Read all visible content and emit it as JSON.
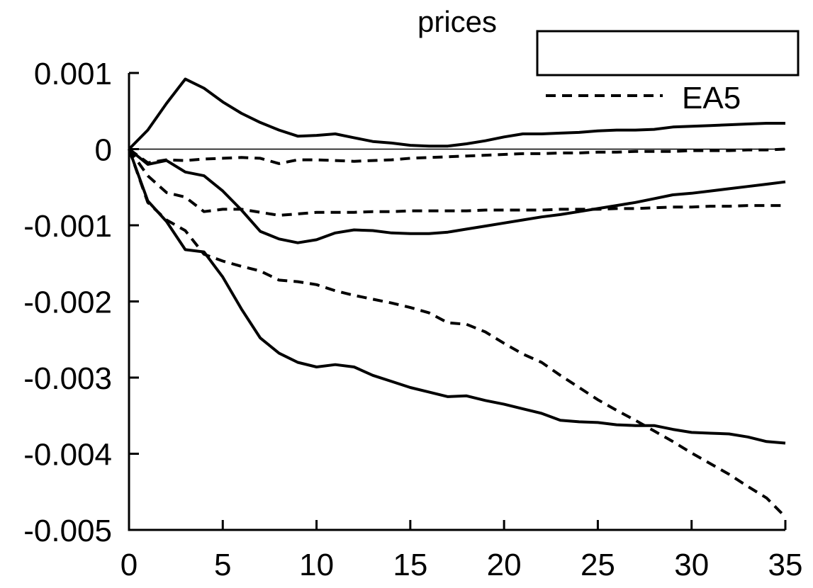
{
  "chart_data": {
    "type": "line",
    "title": "prices",
    "xlabel": "",
    "ylabel": "",
    "xlim": [
      0,
      35
    ],
    "ylim": [
      -0.005,
      0.001
    ],
    "x_ticks": [
      "0",
      "5",
      "10",
      "15",
      "20",
      "25",
      "30",
      "35"
    ],
    "y_ticks": [
      "0.001",
      "0",
      "-0.001",
      "-0.002",
      "-0.003",
      "-0.004",
      "-0.005"
    ],
    "x": [
      0,
      1,
      2,
      3,
      4,
      5,
      6,
      7,
      8,
      9,
      10,
      11,
      12,
      13,
      14,
      15,
      16,
      17,
      18,
      19,
      20,
      21,
      22,
      23,
      24,
      25,
      26,
      27,
      28,
      29,
      30,
      31,
      32,
      33,
      34,
      35
    ],
    "legend": {
      "placement": "top-right",
      "entries": [
        {
          "label": "",
          "style": "solid"
        },
        {
          "label": "EA5",
          "style": "dashed"
        }
      ]
    },
    "series": [
      {
        "style": "solid",
        "values": [
          0,
          0.00025,
          0.0006,
          0.00092,
          0.0008,
          0.00062,
          0.00047,
          0.00035,
          0.00025,
          0.00017,
          0.00018,
          0.0002,
          0.00015,
          0.0001,
          8e-05,
          5e-05,
          4e-05,
          4e-05,
          7e-05,
          0.00011,
          0.00016,
          0.0002,
          0.0002,
          0.00021,
          0.00022,
          0.00024,
          0.00025,
          0.00025,
          0.00026,
          0.00029,
          0.0003,
          0.00031,
          0.00032,
          0.00033,
          0.00034,
          0.00034
        ]
      },
      {
        "style": "solid",
        "values": [
          0,
          -0.0002,
          -0.00015,
          -0.0003,
          -0.00035,
          -0.00055,
          -0.0008,
          -0.00108,
          -0.00118,
          -0.00123,
          -0.00119,
          -0.0011,
          -0.00106,
          -0.00107,
          -0.0011,
          -0.00111,
          -0.00111,
          -0.00109,
          -0.00105,
          -0.00101,
          -0.00097,
          -0.00093,
          -0.00089,
          -0.00086,
          -0.00082,
          -0.00078,
          -0.00074,
          -0.0007,
          -0.00065,
          -0.0006,
          -0.00058,
          -0.00055,
          -0.00052,
          -0.00049,
          -0.00046,
          -0.00043
        ]
      },
      {
        "style": "solid",
        "values": [
          0,
          -0.00068,
          -0.00095,
          -0.00132,
          -0.00135,
          -0.00168,
          -0.0021,
          -0.00248,
          -0.00268,
          -0.0028,
          -0.00286,
          -0.00283,
          -0.00286,
          -0.00297,
          -0.00305,
          -0.00313,
          -0.00319,
          -0.00325,
          -0.00324,
          -0.0033,
          -0.00335,
          -0.00341,
          -0.00347,
          -0.00356,
          -0.00358,
          -0.00359,
          -0.00362,
          -0.00363,
          -0.00363,
          -0.00368,
          -0.00372,
          -0.00373,
          -0.00374,
          -0.00378,
          -0.00384,
          -0.00386
        ]
      },
      {
        "style": "dashed",
        "values": [
          0,
          -0.00018,
          -0.00014,
          -0.00015,
          -0.00013,
          -0.00012,
          -0.00011,
          -0.00012,
          -0.00019,
          -0.00014,
          -0.00014,
          -0.00015,
          -0.00016,
          -0.00015,
          -0.00014,
          -0.00012,
          -0.00011,
          -0.0001,
          -9e-05,
          -8e-05,
          -7e-05,
          -6e-05,
          -6e-05,
          -5e-05,
          -5e-05,
          -4e-05,
          -4e-05,
          -3e-05,
          -3e-05,
          -3e-05,
          -2e-05,
          -2e-05,
          -2e-05,
          -1e-05,
          -1e-05,
          0
        ]
      },
      {
        "style": "dashed",
        "values": [
          0,
          -0.00035,
          -0.00057,
          -0.00063,
          -0.00082,
          -0.00079,
          -0.00079,
          -0.00083,
          -0.00087,
          -0.00085,
          -0.00083,
          -0.00083,
          -0.00083,
          -0.00082,
          -0.00082,
          -0.00081,
          -0.00081,
          -0.00081,
          -0.00081,
          -0.0008,
          -0.0008,
          -0.0008,
          -0.0008,
          -0.00079,
          -0.00079,
          -0.00079,
          -0.00078,
          -0.00078,
          -0.00077,
          -0.00076,
          -0.00076,
          -0.00075,
          -0.00075,
          -0.00074,
          -0.00074,
          -0.00074
        ]
      },
      {
        "style": "dashed",
        "values": [
          0,
          -0.0007,
          -0.00093,
          -0.00107,
          -0.00138,
          -0.00147,
          -0.00154,
          -0.0016,
          -0.00172,
          -0.00174,
          -0.00178,
          -0.00186,
          -0.00192,
          -0.00197,
          -0.00202,
          -0.00208,
          -0.00215,
          -0.00228,
          -0.0023,
          -0.0024,
          -0.00255,
          -0.00269,
          -0.0028,
          -0.00297,
          -0.00313,
          -0.00329,
          -0.00343,
          -0.00356,
          -0.0037,
          -0.00384,
          -0.00399,
          -0.00413,
          -0.00427,
          -0.00443,
          -0.00458,
          -0.00483
        ]
      }
    ]
  }
}
